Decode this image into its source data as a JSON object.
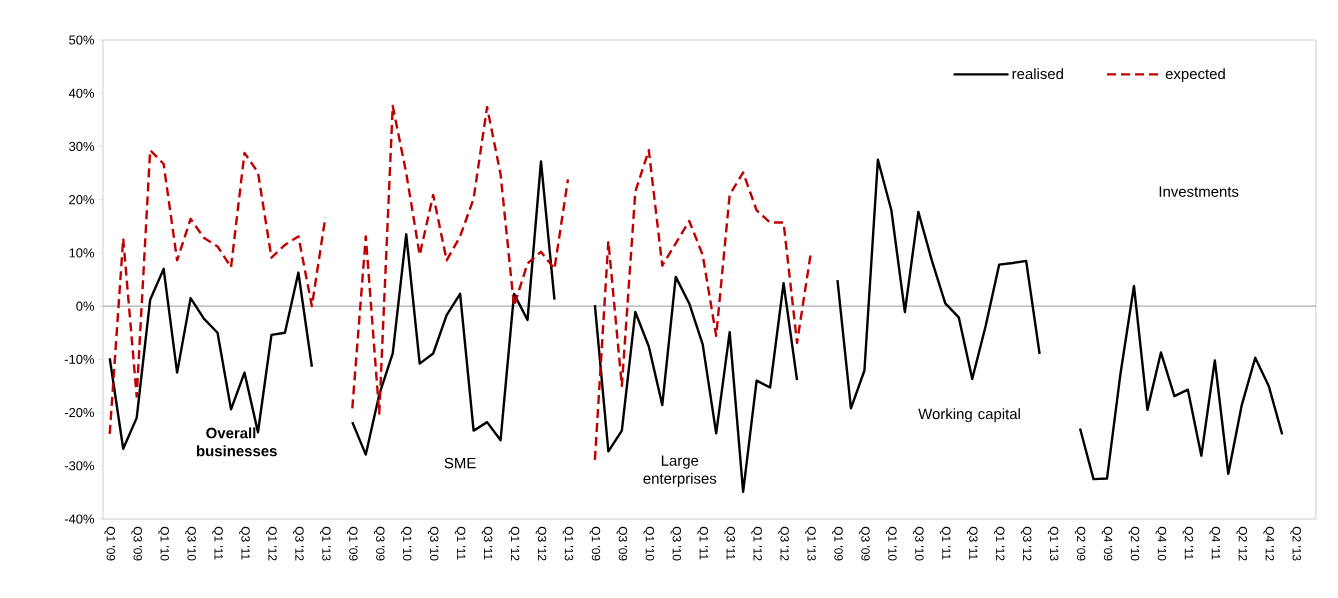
{
  "chart_data": {
    "type": "line",
    "categories": [
      "Q1 '09",
      null,
      "Q3 '09",
      null,
      "Q1 '10",
      null,
      "Q3 '10",
      null,
      "Q1 '11",
      null,
      "Q3 '11",
      null,
      "Q1 '12",
      null,
      "Q3 '12",
      null,
      "Q1 '13",
      null,
      "Q1 '09",
      null,
      "Q3 '09",
      null,
      "Q1 '10",
      null,
      "Q3 '10",
      null,
      "Q1 '11",
      null,
      "Q3 '11",
      null,
      "Q1 '12",
      null,
      "Q3 '12",
      null,
      "Q1 '13",
      null,
      "Q1 '09",
      null,
      "Q3 '09",
      null,
      "Q1 '10",
      null,
      "Q3 '10",
      null,
      "Q1 '11",
      null,
      "Q3 '11",
      null,
      "Q1 '12",
      null,
      "Q3 '12",
      null,
      "Q1 '13",
      null,
      "Q1 '09",
      null,
      "Q3 '09",
      null,
      "Q1 '10",
      null,
      "Q3 '10",
      null,
      "Q1 '11",
      null,
      "Q3 '11",
      null,
      "Q1 '12",
      null,
      "Q3 '12",
      null,
      "Q1 '13",
      null,
      "Q2 '09",
      null,
      "Q4 '09",
      null,
      "Q2 '10",
      null,
      "Q4 '10",
      null,
      "Q2 '11",
      null,
      "Q4 '11",
      null,
      "Q2 '12",
      null,
      "Q4 '12",
      null,
      "Q2 '13",
      null
    ],
    "series": [
      {
        "name": "realised",
        "color": "#000000",
        "line_style": "solid",
        "values": [
          -9.8,
          -26.8,
          -21.0,
          1.2,
          7.0,
          -12.5,
          1.5,
          -2.4,
          -5.0,
          -19.4,
          -12.5,
          -23.7,
          -5.4,
          -5.0,
          6.3,
          -11.4,
          null,
          null,
          -21.8,
          -27.9,
          -16.6,
          -8.9,
          13.5,
          -10.8,
          -8.9,
          -1.7,
          2.3,
          -23.4,
          -21.8,
          -25.2,
          2.3,
          -2.6,
          27.2,
          1.2,
          null,
          null,
          0.2,
          -27.3,
          -23.4,
          -1.1,
          -7.6,
          -18.6,
          5.5,
          0.5,
          -7.2,
          -23.9,
          -4.9,
          -34.9,
          -14.0,
          -15.3,
          4.3,
          -13.9,
          null,
          null,
          4.9,
          -19.2,
          -12.1,
          27.5,
          18.0,
          -1.1,
          17.7,
          8.6,
          0.5,
          -2.1,
          -13.7,
          -3.7,
          7.8,
          8.1,
          8.5,
          -9.0,
          null,
          null,
          -23.0,
          -32.5,
          -32.4,
          -12.7,
          3.8,
          -19.5,
          -8.7,
          -16.9,
          -15.7,
          -28.1,
          -10.2,
          -31.5,
          -18.6,
          -9.7,
          -15.0,
          -24.1,
          null,
          null
        ]
      },
      {
        "name": "expected",
        "color": "#c00000",
        "line_style": "dashed",
        "values": [
          -24.0,
          12.7,
          -17.0,
          29.3,
          26.7,
          8.6,
          16.4,
          12.8,
          11.2,
          7.3,
          28.8,
          25.1,
          9.1,
          11.5,
          13.1,
          0.0,
          16.7,
          null,
          -19.2,
          13.1,
          -20.2,
          37.6,
          25.0,
          9.6,
          20.9,
          8.6,
          13.1,
          20.2,
          37.4,
          24.8,
          0.0,
          8.0,
          10.2,
          7.0,
          23.8,
          null,
          -28.9,
          12.2,
          -15.0,
          21.5,
          29.3,
          7.6,
          11.8,
          16.0,
          9.6,
          -5.6,
          20.9,
          25.1,
          18.0,
          15.7,
          15.7,
          -6.9,
          9.6,
          null,
          null,
          null,
          null,
          null,
          null,
          null,
          null,
          null,
          null,
          null,
          null,
          null,
          null,
          null,
          null,
          null,
          null,
          null,
          null,
          null,
          null,
          null,
          null,
          null,
          null,
          null,
          null,
          null,
          null,
          null,
          null,
          null,
          null,
          null,
          null,
          null
        ]
      }
    ],
    "ylim": [
      -40,
      50
    ],
    "yticks": [
      {
        "value": -40,
        "label": "-40%"
      },
      {
        "value": -30,
        "label": "-30%"
      },
      {
        "value": -20,
        "label": "-20%"
      },
      {
        "value": -10,
        "label": "-10%"
      },
      {
        "value": 0,
        "label": "0%"
      },
      {
        "value": 10,
        "label": "10%"
      },
      {
        "value": 20,
        "label": "20%"
      },
      {
        "value": 30,
        "label": "30%"
      },
      {
        "value": 40,
        "label": "40%"
      },
      {
        "value": 50,
        "label": "50%"
      }
    ],
    "grid": false,
    "ref_lines": [
      {
        "axis": "y",
        "value": 0,
        "color": "#808080"
      }
    ],
    "legend": "top right",
    "marker": "none",
    "annotations": [
      "**Overall businesses**",
      "SME",
      "Large enterprises",
      "Working capital",
      "Investments"
    ]
  }
}
